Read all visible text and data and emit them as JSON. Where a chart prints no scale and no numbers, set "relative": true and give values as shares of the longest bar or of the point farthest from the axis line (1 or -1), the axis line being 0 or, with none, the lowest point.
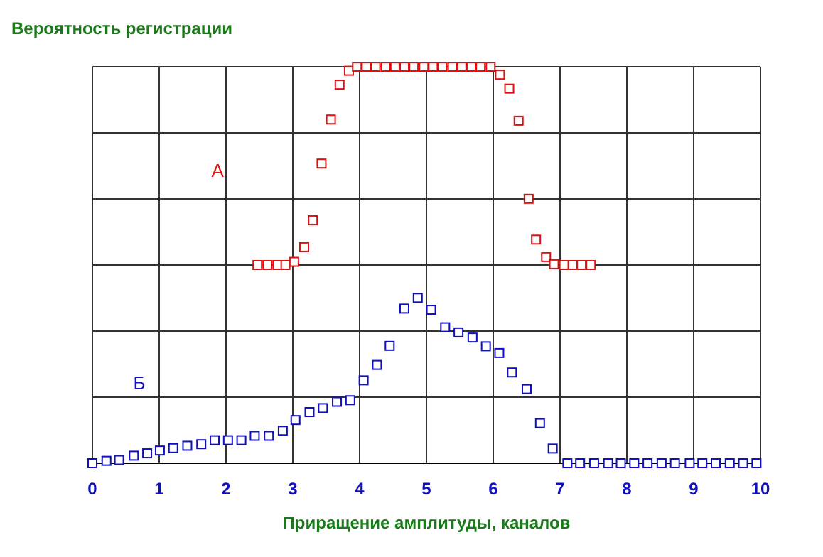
{
  "chart_data": {
    "type": "scatter",
    "title": "Вероятность регистрации",
    "xlabel": "Приращение амплитуды, каналов",
    "relative": true,
    "xlim": [
      0,
      10
    ],
    "xticks": [
      0,
      1,
      2,
      3,
      4,
      5,
      6,
      7,
      8,
      9,
      10
    ],
    "grid": true,
    "marker": "square",
    "series": [
      {
        "name": "А",
        "color": "#e01010",
        "x": [
          2.47,
          2.62,
          2.77,
          2.89,
          3.02,
          3.17,
          3.3,
          3.43,
          3.57,
          3.7,
          3.84,
          3.96,
          4.1,
          4.24,
          4.39,
          4.53,
          4.67,
          4.81,
          4.96,
          5.1,
          5.24,
          5.39,
          5.53,
          5.67,
          5.81,
          5.96,
          6.1,
          6.24,
          6.38,
          6.53,
          6.64,
          6.79,
          6.91,
          7.06,
          7.19,
          7.32,
          7.46
        ],
        "values": [
          0.5,
          0.5,
          0.5,
          0.5,
          0.508,
          0.545,
          0.613,
          0.756,
          0.867,
          0.955,
          0.99,
          1,
          1,
          1,
          1,
          1,
          1,
          1,
          1,
          1,
          1,
          1,
          1,
          1,
          1,
          1,
          0.98,
          0.945,
          0.864,
          0.667,
          0.564,
          0.52,
          0.502,
          0.5,
          0.5,
          0.5,
          0.5
        ]
      },
      {
        "name": "Б",
        "color": "#1010c0",
        "x": [
          0,
          0.21,
          0.4,
          0.62,
          0.82,
          1.01,
          1.21,
          1.42,
          1.63,
          1.83,
          2.03,
          2.23,
          2.43,
          2.64,
          2.85,
          3.04,
          3.25,
          3.45,
          3.66,
          3.86,
          4.06,
          4.26,
          4.45,
          4.67,
          4.87,
          5.07,
          5.28,
          5.48,
          5.69,
          5.89,
          6.09,
          6.28,
          6.5,
          6.7,
          6.89,
          7.11,
          7.3,
          7.51,
          7.72,
          7.91,
          8.11,
          8.31,
          8.52,
          8.72,
          8.94,
          9.13,
          9.33,
          9.54,
          9.74,
          9.94
        ],
        "values": [
          0,
          0.006,
          0.008,
          0.019,
          0.025,
          0.032,
          0.038,
          0.044,
          0.048,
          0.058,
          0.058,
          0.058,
          0.069,
          0.069,
          0.082,
          0.109,
          0.129,
          0.139,
          0.155,
          0.159,
          0.209,
          0.248,
          0.296,
          0.39,
          0.417,
          0.387,
          0.343,
          0.33,
          0.317,
          0.295,
          0.278,
          0.229,
          0.187,
          0.101,
          0.037,
          0,
          0,
          0,
          0,
          0,
          0,
          0,
          0,
          0,
          0,
          0,
          0,
          0,
          0,
          0
        ]
      }
    ]
  }
}
